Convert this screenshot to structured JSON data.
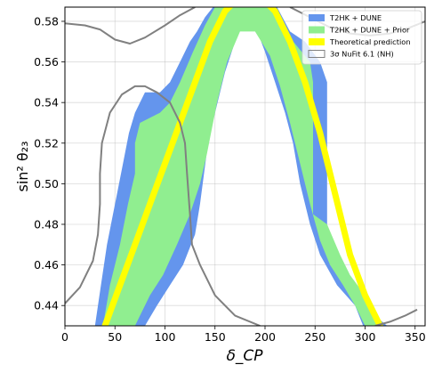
{
  "chart_data": {
    "type": "area",
    "xlabel": "δ_CP",
    "ylabel": "sin² θ₂₃",
    "xlim": [
      0,
      360
    ],
    "ylim": [
      0.43,
      0.587
    ],
    "xticks": [
      "0",
      "50",
      "100",
      "150",
      "200",
      "250",
      "300",
      "350"
    ],
    "xtick_values": [
      0,
      50,
      100,
      150,
      200,
      250,
      300,
      350
    ],
    "yticks": [
      "0.44",
      "0.46",
      "0.48",
      "0.50",
      "0.52",
      "0.54",
      "0.56",
      "0.58"
    ],
    "ytick_values": [
      0.44,
      0.46,
      0.48,
      0.5,
      0.52,
      0.54,
      0.56,
      0.58
    ],
    "grid": true,
    "legend_position": "top-right",
    "legend": [
      {
        "label": "T2HK + DUNE",
        "kind": "patch",
        "color": "#6495ed"
      },
      {
        "label": "T2HK + DUNE + Prior",
        "kind": "patch",
        "color": "#90ee90"
      },
      {
        "label": "Theoretical prediction",
        "kind": "line",
        "color": "#ffff00"
      },
      {
        "label": "3σ NuFit 6.1 (NH)",
        "kind": "outline",
        "color": "#808080"
      }
    ],
    "regions": [
      {
        "name": "T2HK + DUNE",
        "color": "#6495ed",
        "polygon": [
          [
            30,
            0.43
          ],
          [
            36,
            0.45
          ],
          [
            42,
            0.47
          ],
          [
            50,
            0.49
          ],
          [
            58,
            0.51
          ],
          [
            64,
            0.525
          ],
          [
            70,
            0.535
          ],
          [
            80,
            0.545
          ],
          [
            95,
            0.545
          ],
          [
            105,
            0.55
          ],
          [
            115,
            0.56
          ],
          [
            125,
            0.57
          ],
          [
            132,
            0.575
          ],
          [
            140,
            0.582
          ],
          [
            148,
            0.587
          ],
          [
            212,
            0.587
          ],
          [
            225,
            0.575
          ],
          [
            240,
            0.57
          ],
          [
            255,
            0.56
          ],
          [
            262,
            0.55
          ],
          [
            262,
            0.53
          ],
          [
            262,
            0.5
          ],
          [
            262,
            0.48
          ],
          [
            268,
            0.47
          ],
          [
            283,
            0.455
          ],
          [
            298,
            0.445
          ],
          [
            310,
            0.435
          ],
          [
            322,
            0.43
          ],
          [
            298,
            0.43
          ],
          [
            290,
            0.44
          ],
          [
            272,
            0.45
          ],
          [
            255,
            0.465
          ],
          [
            245,
            0.48
          ],
          [
            235,
            0.5
          ],
          [
            228,
            0.52
          ],
          [
            220,
            0.535
          ],
          [
            210,
            0.55
          ],
          [
            200,
            0.565
          ],
          [
            190,
            0.578
          ],
          [
            180,
            0.582
          ],
          [
            170,
            0.57
          ],
          [
            160,
            0.555
          ],
          [
            150,
            0.535
          ],
          [
            143,
            0.52
          ],
          [
            135,
            0.49
          ],
          [
            130,
            0.475
          ],
          [
            118,
            0.46
          ],
          [
            105,
            0.45
          ],
          [
            92,
            0.44
          ],
          [
            80,
            0.43
          ]
        ]
      },
      {
        "name": "T2HK + DUNE + Prior",
        "color": "#90ee90",
        "polygon": [
          [
            38,
            0.43
          ],
          [
            45,
            0.45
          ],
          [
            55,
            0.47
          ],
          [
            63,
            0.49
          ],
          [
            70,
            0.505
          ],
          [
            70,
            0.52
          ],
          [
            75,
            0.53
          ],
          [
            95,
            0.535
          ],
          [
            105,
            0.54
          ],
          [
            115,
            0.55
          ],
          [
            128,
            0.565
          ],
          [
            140,
            0.578
          ],
          [
            150,
            0.587
          ],
          [
            205,
            0.587
          ],
          [
            225,
            0.572
          ],
          [
            245,
            0.56
          ],
          [
            248,
            0.55
          ],
          [
            248,
            0.53
          ],
          [
            248,
            0.5
          ],
          [
            248,
            0.485
          ],
          [
            262,
            0.48
          ],
          [
            275,
            0.465
          ],
          [
            285,
            0.455
          ],
          [
            300,
            0.445
          ],
          [
            312,
            0.43
          ],
          [
            300,
            0.43
          ],
          [
            290,
            0.44
          ],
          [
            278,
            0.45
          ],
          [
            265,
            0.46
          ],
          [
            255,
            0.472
          ],
          [
            245,
            0.49
          ],
          [
            235,
            0.51
          ],
          [
            225,
            0.53
          ],
          [
            215,
            0.548
          ],
          [
            205,
            0.563
          ],
          [
            190,
            0.575
          ],
          [
            175,
            0.575
          ],
          [
            162,
            0.56
          ],
          [
            152,
            0.54
          ],
          [
            142,
            0.515
          ],
          [
            135,
            0.5
          ],
          [
            125,
            0.485
          ],
          [
            112,
            0.47
          ],
          [
            98,
            0.455
          ],
          [
            85,
            0.445
          ],
          [
            70,
            0.43
          ]
        ]
      },
      {
        "name": "Theoretical prediction",
        "color": "#ffff00",
        "points": [
          [
            40,
            0.43
          ],
          [
            55,
            0.45
          ],
          [
            70,
            0.47
          ],
          [
            85,
            0.49
          ],
          [
            100,
            0.51
          ],
          [
            115,
            0.53
          ],
          [
            130,
            0.55
          ],
          [
            145,
            0.57
          ],
          [
            160,
            0.585
          ],
          [
            170,
            0.59
          ],
          [
            200,
            0.59
          ],
          [
            210,
            0.585
          ],
          [
            225,
            0.57
          ],
          [
            240,
            0.55
          ],
          [
            255,
            0.525
          ],
          [
            270,
            0.495
          ],
          [
            285,
            0.465
          ],
          [
            300,
            0.445
          ],
          [
            315,
            0.43
          ]
        ]
      }
    ],
    "contours": [
      {
        "name": "3σ NuFit 6.1 (NH)",
        "color": "#808080",
        "segments": [
          [
            [
              0,
              0.579
            ],
            [
              20,
              0.578
            ],
            [
              35,
              0.576
            ],
            [
              50,
              0.571
            ],
            [
              65,
              0.569
            ],
            [
              80,
              0.572
            ],
            [
              100,
              0.578
            ],
            [
              115,
              0.583
            ],
            [
              130,
              0.587
            ]
          ],
          [
            [
              225,
              0.587
            ],
            [
              245,
              0.582
            ],
            [
              265,
              0.577
            ],
            [
              285,
              0.574
            ],
            [
              305,
              0.573
            ],
            [
              325,
              0.574
            ],
            [
              345,
              0.577
            ],
            [
              360,
              0.58
            ]
          ],
          [
            [
              0,
              0.441
            ],
            [
              15,
              0.449
            ],
            [
              28,
              0.462
            ],
            [
              33,
              0.475
            ],
            [
              35,
              0.49
            ],
            [
              35,
              0.505
            ],
            [
              37,
              0.52
            ],
            [
              45,
              0.535
            ],
            [
              57,
              0.544
            ],
            [
              70,
              0.548
            ],
            [
              80,
              0.548
            ],
            [
              92,
              0.545
            ],
            [
              105,
              0.54
            ],
            [
              115,
              0.53
            ],
            [
              120,
              0.52
            ],
            [
              122,
              0.505
            ],
            [
              125,
              0.485
            ],
            [
              127,
              0.47
            ],
            [
              135,
              0.46
            ],
            [
              150,
              0.445
            ],
            [
              170,
              0.435
            ],
            [
              195,
              0.43
            ]
          ],
          [
            [
              310,
              0.43
            ],
            [
              325,
              0.432
            ],
            [
              340,
              0.435
            ],
            [
              352,
              0.438
            ]
          ]
        ]
      }
    ]
  }
}
